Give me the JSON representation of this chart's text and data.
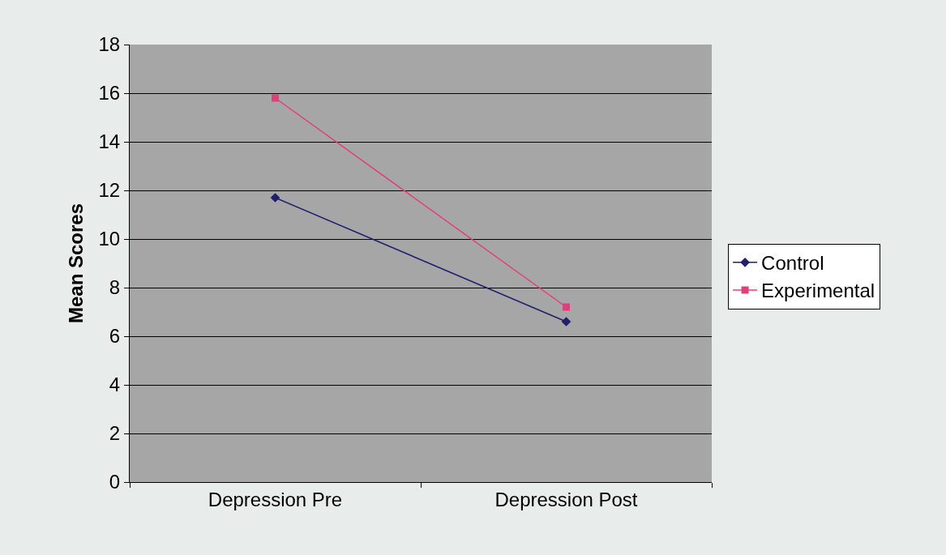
{
  "chart_data": {
    "type": "line",
    "ylabel": "Mean Scores",
    "categories": [
      "Depression Pre",
      "Depression Post"
    ],
    "series": [
      {
        "name": "Control",
        "color": "#1f1f6e",
        "values": [
          11.7,
          6.6
        ],
        "marker": "diamond"
      },
      {
        "name": "Experimental",
        "color": "#e0407a",
        "values": [
          15.8,
          7.2
        ],
        "marker": "square"
      }
    ],
    "ylim": [
      0,
      18
    ],
    "yticks": [
      0,
      2,
      4,
      6,
      8,
      10,
      12,
      14,
      16,
      18
    ],
    "grid": "y",
    "legend": "right",
    "line_style": "solid"
  }
}
